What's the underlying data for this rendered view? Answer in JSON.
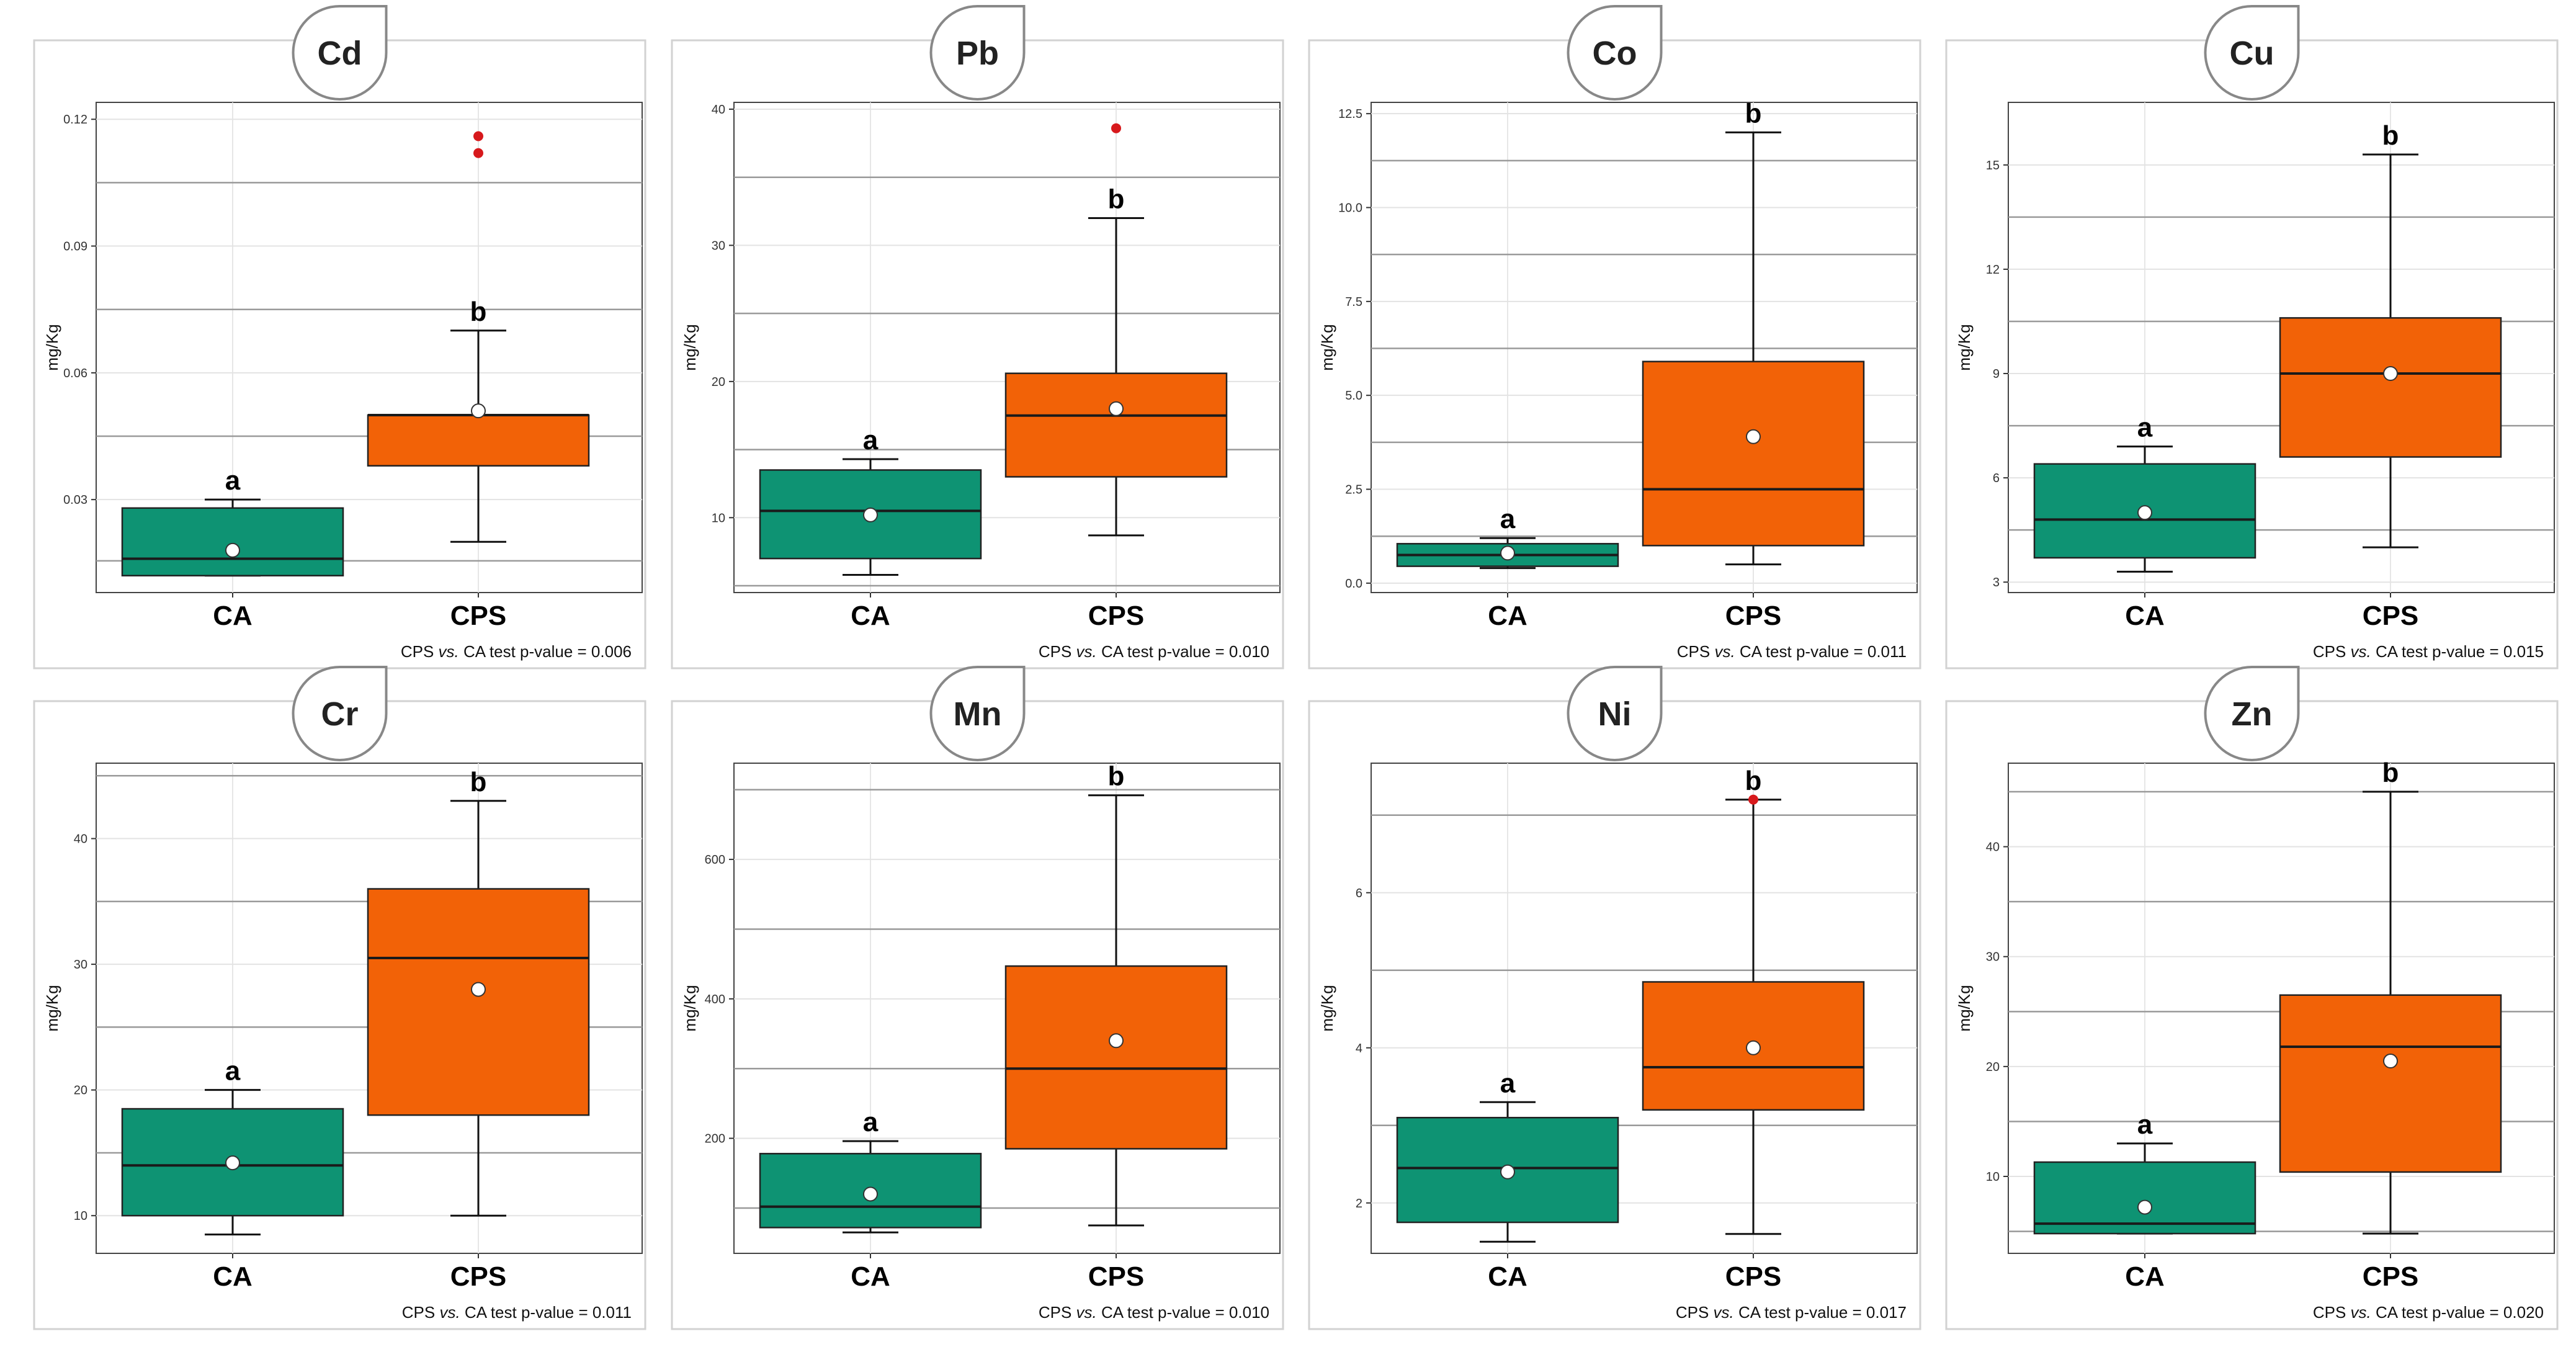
{
  "palette": {
    "ca": "#0e9373",
    "cps": "#f26207",
    "outlier": "#d7191c",
    "mean": "#ffffff"
  },
  "y_label": "mg/Kg",
  "chart_data": [
    {
      "type": "box",
      "title": "Cd",
      "ylabel": "mg/Kg",
      "ylim": [
        0.008,
        0.124
      ],
      "ticks": [
        {
          "v": 0.03,
          "t": "0.03"
        },
        {
          "v": 0.06,
          "t": "0.06"
        },
        {
          "v": 0.09,
          "t": "0.09"
        },
        {
          "v": 0.12,
          "t": "0.12"
        }
      ],
      "gridlines": [
        0.0045,
        0.0155,
        0.045,
        0.075,
        0.105
      ],
      "groups": [
        {
          "name": "CA",
          "whisker_low": 0.012,
          "q1": 0.012,
          "median": 0.016,
          "q3": 0.028,
          "whisker_high": 0.03,
          "mean": 0.018,
          "outliers": [],
          "letter": "a"
        },
        {
          "name": "CPS",
          "whisker_low": 0.02,
          "q1": 0.038,
          "median": 0.05,
          "q3": 0.05,
          "whisker_high": 0.07,
          "mean": 0.051,
          "outliers": [
            0.112,
            0.116
          ],
          "letter": "b"
        }
      ],
      "test": {
        "prefix": "CPS ",
        "vs": "vs.",
        "suffix": " CA test p-value = 0.006"
      }
    },
    {
      "type": "box",
      "title": "Pb",
      "ylabel": "mg/Kg",
      "ylim": [
        4.5,
        40.5
      ],
      "ticks": [
        {
          "v": 10,
          "t": "10"
        },
        {
          "v": 20,
          "t": "20"
        },
        {
          "v": 30,
          "t": "30"
        },
        {
          "v": 40,
          "t": "40"
        }
      ],
      "gridlines": [
        5,
        15,
        25,
        35
      ],
      "groups": [
        {
          "name": "CA",
          "whisker_low": 5.8,
          "q1": 7.0,
          "median": 10.5,
          "q3": 13.5,
          "whisker_high": 14.3,
          "mean": 10.2,
          "outliers": [],
          "letter": "a"
        },
        {
          "name": "CPS",
          "whisker_low": 8.7,
          "q1": 13.0,
          "median": 17.5,
          "q3": 20.6,
          "whisker_high": 32.0,
          "mean": 18.0,
          "outliers": [
            38.6
          ],
          "letter": "b"
        }
      ],
      "test": {
        "prefix": "CPS ",
        "vs": "vs.",
        "suffix": " CA test p-value = 0.010"
      }
    },
    {
      "type": "box",
      "title": "Co",
      "ylabel": "mg/Kg",
      "ylim": [
        -0.25,
        12.8
      ],
      "ticks": [
        {
          "v": 0.0,
          "t": "0.0"
        },
        {
          "v": 2.5,
          "t": "2.5"
        },
        {
          "v": 5.0,
          "t": "5.0"
        },
        {
          "v": 7.5,
          "t": "7.5"
        },
        {
          "v": 10.0,
          "t": "10.0"
        },
        {
          "v": 12.5,
          "t": "12.5"
        }
      ],
      "gridlines": [
        1.25,
        3.75,
        6.25,
        8.75,
        11.25
      ],
      "groups": [
        {
          "name": "CA",
          "whisker_low": 0.4,
          "q1": 0.45,
          "median": 0.75,
          "q3": 1.05,
          "whisker_high": 1.2,
          "mean": 0.8,
          "outliers": [],
          "letter": "a"
        },
        {
          "name": "CPS",
          "whisker_low": 0.5,
          "q1": 1.0,
          "median": 2.5,
          "q3": 5.9,
          "whisker_high": 12.0,
          "mean": 3.9,
          "outliers": [],
          "letter": "b"
        }
      ],
      "test": {
        "prefix": "CPS ",
        "vs": "vs.",
        "suffix": " CA test p-value = 0.011"
      }
    },
    {
      "type": "box",
      "title": "Cu",
      "ylabel": "mg/Kg",
      "ylim": [
        2.7,
        16.8
      ],
      "ticks": [
        {
          "v": 3,
          "t": "3"
        },
        {
          "v": 6,
          "t": "6"
        },
        {
          "v": 9,
          "t": "9"
        },
        {
          "v": 12,
          "t": "12"
        },
        {
          "v": 15,
          "t": "15"
        }
      ],
      "gridlines": [
        4.5,
        7.5,
        10.5,
        13.5
      ],
      "groups": [
        {
          "name": "CA",
          "whisker_low": 3.3,
          "q1": 3.7,
          "median": 4.8,
          "q3": 6.4,
          "whisker_high": 6.9,
          "mean": 5.0,
          "outliers": [],
          "letter": "a"
        },
        {
          "name": "CPS",
          "whisker_low": 4.0,
          "q1": 6.6,
          "median": 9.0,
          "q3": 10.6,
          "whisker_high": 15.3,
          "mean": 9.0,
          "outliers": [],
          "letter": "b"
        }
      ],
      "test": {
        "prefix": "CPS ",
        "vs": "vs.",
        "suffix": " CA test p-value = 0.015"
      }
    },
    {
      "type": "box",
      "title": "Cr",
      "ylabel": "mg/Kg",
      "ylim": [
        7,
        46
      ],
      "ticks": [
        {
          "v": 10,
          "t": "10"
        },
        {
          "v": 20,
          "t": "20"
        },
        {
          "v": 30,
          "t": "30"
        },
        {
          "v": 40,
          "t": "40"
        }
      ],
      "gridlines": [
        15,
        25,
        35,
        45
      ],
      "groups": [
        {
          "name": "CA",
          "whisker_low": 8.5,
          "q1": 10.0,
          "median": 14.0,
          "q3": 18.5,
          "whisker_high": 20.0,
          "mean": 14.2,
          "outliers": [],
          "letter": "a"
        },
        {
          "name": "CPS",
          "whisker_low": 10.0,
          "q1": 18.0,
          "median": 30.5,
          "q3": 36.0,
          "whisker_high": 43.0,
          "mean": 28.0,
          "outliers": [],
          "letter": "b"
        }
      ],
      "test": {
        "prefix": "CPS ",
        "vs": "vs.",
        "suffix": " CA test p-value = 0.011"
      }
    },
    {
      "type": "box",
      "title": "Mn",
      "ylabel": "mg/Kg",
      "ylim": [
        35,
        738
      ],
      "ticks": [
        {
          "v": 200,
          "t": "200"
        },
        {
          "v": 400,
          "t": "400"
        },
        {
          "v": 600,
          "t": "600"
        }
      ],
      "gridlines": [
        100,
        300,
        500,
        700
      ],
      "groups": [
        {
          "name": "CA",
          "whisker_low": 65,
          "q1": 72,
          "median": 102,
          "q3": 178,
          "whisker_high": 196,
          "mean": 120,
          "outliers": [],
          "letter": "a"
        },
        {
          "name": "CPS",
          "whisker_low": 75,
          "q1": 185,
          "median": 300,
          "q3": 447,
          "whisker_high": 692,
          "mean": 340,
          "outliers": [],
          "letter": "b"
        }
      ],
      "test": {
        "prefix": "CPS ",
        "vs": "vs.",
        "suffix": " CA test p-value = 0.010"
      }
    },
    {
      "type": "box",
      "title": "Ni",
      "ylabel": "mg/Kg",
      "ylim": [
        1.35,
        7.67
      ],
      "ticks": [
        {
          "v": 2,
          "t": "2"
        },
        {
          "v": 4,
          "t": "4"
        },
        {
          "v": 6,
          "t": "6"
        }
      ],
      "gridlines": [
        3,
        5,
        7
      ],
      "groups": [
        {
          "name": "CA",
          "whisker_low": 1.5,
          "q1": 1.75,
          "median": 2.45,
          "q3": 3.1,
          "whisker_high": 3.3,
          "mean": 2.4,
          "outliers": [],
          "letter": "a"
        },
        {
          "name": "CPS",
          "whisker_low": 1.6,
          "q1": 3.2,
          "median": 3.75,
          "q3": 4.85,
          "whisker_high": 7.2,
          "mean": 4.0,
          "outliers": [
            7.2
          ],
          "letter": "b"
        }
      ],
      "test": {
        "prefix": "CPS ",
        "vs": "vs.",
        "suffix": " CA test p-value = 0.017"
      }
    },
    {
      "type": "box",
      "title": "Zn",
      "ylabel": "mg/Kg",
      "ylim": [
        3,
        47.6
      ],
      "ticks": [
        {
          "v": 10,
          "t": "10"
        },
        {
          "v": 20,
          "t": "20"
        },
        {
          "v": 30,
          "t": "30"
        },
        {
          "v": 40,
          "t": "40"
        }
      ],
      "gridlines": [
        5,
        15,
        25,
        35,
        45
      ],
      "groups": [
        {
          "name": "CA",
          "whisker_low": 4.8,
          "q1": 4.8,
          "median": 5.7,
          "q3": 11.3,
          "whisker_high": 13.0,
          "mean": 7.2,
          "outliers": [],
          "letter": "a"
        },
        {
          "name": "CPS",
          "whisker_low": 4.8,
          "q1": 10.4,
          "median": 21.8,
          "q3": 26.5,
          "whisker_high": 45.0,
          "mean": 20.5,
          "outliers": [],
          "letter": "b"
        }
      ],
      "test": {
        "prefix": "CPS ",
        "vs": "vs.",
        "suffix": " CA test p-value = 0.020"
      }
    }
  ]
}
